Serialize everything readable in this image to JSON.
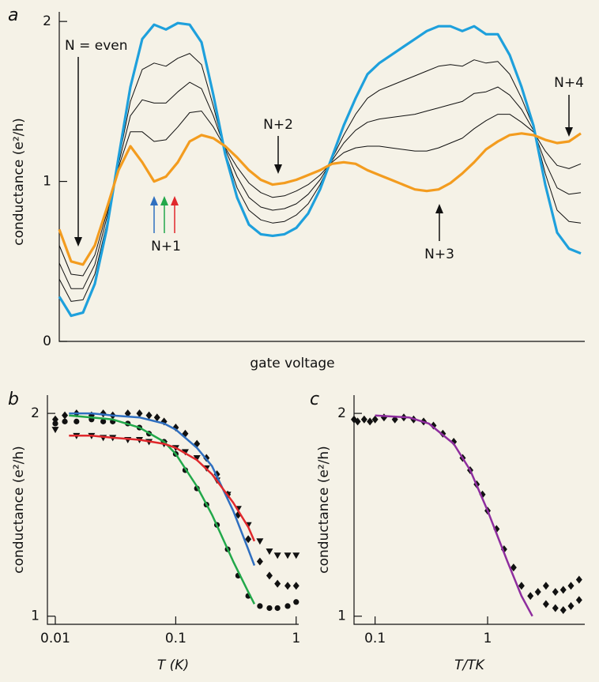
{
  "chart_data": [
    {
      "type": "line",
      "panel": "a",
      "ylabel": "conductance (e²/h)",
      "xlabel": "gate voltage",
      "ylim": [
        0,
        2.06
      ],
      "yticks": [
        0,
        1,
        2
      ],
      "annotations": [
        "N = even",
        "N+1",
        "N+2",
        "N+3",
        "N+4"
      ],
      "series": [
        {
          "color": "#111111",
          "values": [
            0.6,
            0.42,
            0.41,
            0.54,
            0.8,
            1.09,
            1.31,
            1.31,
            1.25,
            1.26,
            1.34,
            1.43,
            1.44,
            1.34,
            1.21,
            1.09,
            0.99,
            0.93,
            0.9,
            0.91,
            0.94,
            0.98,
            1.04,
            1.12,
            1.18,
            1.21,
            1.22,
            1.22,
            1.21,
            1.2,
            1.19,
            1.19,
            1.21,
            1.24,
            1.27,
            1.33,
            1.38,
            1.42,
            1.42,
            1.37,
            1.31,
            1.19,
            1.1,
            1.08,
            1.11
          ]
        },
        {
          "color": "#111111",
          "values": [
            0.49,
            0.33,
            0.33,
            0.48,
            0.77,
            1.11,
            1.41,
            1.51,
            1.49,
            1.49,
            1.56,
            1.62,
            1.58,
            1.41,
            1.2,
            1.03,
            0.9,
            0.84,
            0.82,
            0.83,
            0.86,
            0.92,
            1.01,
            1.13,
            1.24,
            1.32,
            1.37,
            1.39,
            1.4,
            1.41,
            1.42,
            1.44,
            1.46,
            1.48,
            1.5,
            1.55,
            1.56,
            1.59,
            1.54,
            1.45,
            1.32,
            1.12,
            0.96,
            0.92,
            0.93
          ]
        },
        {
          "color": "#111111",
          "values": [
            0.39,
            0.25,
            0.26,
            0.42,
            0.73,
            1.13,
            1.5,
            1.7,
            1.74,
            1.72,
            1.77,
            1.8,
            1.73,
            1.47,
            1.18,
            0.96,
            0.82,
            0.76,
            0.74,
            0.75,
            0.79,
            0.86,
            0.98,
            1.14,
            1.29,
            1.42,
            1.52,
            1.57,
            1.6,
            1.63,
            1.66,
            1.69,
            1.72,
            1.73,
            1.72,
            1.76,
            1.74,
            1.75,
            1.67,
            1.52,
            1.34,
            1.05,
            0.82,
            0.75,
            0.74
          ]
        },
        {
          "color": "#1ea0dc",
          "width": 3.2,
          "values": [
            0.28,
            0.16,
            0.18,
            0.36,
            0.7,
            1.15,
            1.59,
            1.89,
            1.98,
            1.95,
            1.99,
            1.98,
            1.87,
            1.54,
            1.17,
            0.9,
            0.73,
            0.67,
            0.66,
            0.67,
            0.71,
            0.8,
            0.95,
            1.15,
            1.35,
            1.52,
            1.67,
            1.74,
            1.79,
            1.84,
            1.89,
            1.94,
            1.97,
            1.97,
            1.94,
            1.97,
            1.92,
            1.92,
            1.79,
            1.59,
            1.35,
            0.98,
            0.68,
            0.58,
            0.55
          ]
        },
        {
          "color": "#f39c1f",
          "width": 3.2,
          "values": [
            0.7,
            0.5,
            0.48,
            0.6,
            0.83,
            1.07,
            1.22,
            1.12,
            1.0,
            1.03,
            1.12,
            1.25,
            1.29,
            1.27,
            1.22,
            1.15,
            1.07,
            1.01,
            0.98,
            0.99,
            1.01,
            1.04,
            1.07,
            1.11,
            1.12,
            1.11,
            1.07,
            1.04,
            1.01,
            0.98,
            0.95,
            0.94,
            0.95,
            0.99,
            1.05,
            1.12,
            1.2,
            1.25,
            1.29,
            1.3,
            1.29,
            1.26,
            1.24,
            1.25,
            1.3
          ]
        }
      ]
    },
    {
      "type": "scatter",
      "panel": "b",
      "ylabel": "conductance (e²/h)",
      "xlabel": "T (K)",
      "xlog": true,
      "xlim": [
        0.0086,
        1.05
      ],
      "xticks": [
        0.01,
        0.1,
        1
      ],
      "ylim": [
        0.96,
        2.09
      ],
      "yticks": [
        1,
        2
      ],
      "series": [
        {
          "marker": "diamond",
          "color": "#111111",
          "x": [
            0.01,
            0.012,
            0.015,
            0.02,
            0.025,
            0.03,
            0.04,
            0.05,
            0.06,
            0.07,
            0.08,
            0.1,
            0.12,
            0.15,
            0.18,
            0.22,
            0.27,
            0.33,
            0.4,
            0.5,
            0.6,
            0.7,
            0.85,
            1.0
          ],
          "values": [
            1.97,
            1.99,
            2.0,
            1.99,
            2.0,
            1.99,
            2.0,
            2.0,
            1.99,
            1.98,
            1.96,
            1.93,
            1.9,
            1.85,
            1.78,
            1.7,
            1.6,
            1.5,
            1.38,
            1.27,
            1.2,
            1.16,
            1.15,
            1.15
          ]
        },
        {
          "marker": "circle",
          "color": "#111111",
          "x": [
            0.01,
            0.012,
            0.015,
            0.02,
            0.025,
            0.03,
            0.04,
            0.05,
            0.06,
            0.08,
            0.1,
            0.12,
            0.15,
            0.18,
            0.22,
            0.27,
            0.33,
            0.4,
            0.5,
            0.6,
            0.7,
            0.85,
            1.0
          ],
          "values": [
            1.95,
            1.96,
            1.96,
            1.97,
            1.96,
            1.96,
            1.95,
            1.93,
            1.9,
            1.86,
            1.8,
            1.72,
            1.63,
            1.55,
            1.45,
            1.33,
            1.2,
            1.1,
            1.05,
            1.04,
            1.04,
            1.05,
            1.07
          ]
        },
        {
          "marker": "triangle",
          "color": "#111111",
          "x": [
            0.01,
            0.015,
            0.02,
            0.025,
            0.03,
            0.04,
            0.05,
            0.06,
            0.08,
            0.1,
            0.12,
            0.15,
            0.18,
            0.22,
            0.27,
            0.33,
            0.4,
            0.5,
            0.6,
            0.7,
            0.85,
            1.0
          ],
          "values": [
            1.92,
            1.89,
            1.89,
            1.88,
            1.88,
            1.87,
            1.87,
            1.86,
            1.85,
            1.83,
            1.81,
            1.78,
            1.73,
            1.67,
            1.6,
            1.53,
            1.45,
            1.37,
            1.32,
            1.3,
            1.3,
            1.3
          ]
        },
        {
          "color": "#2f6fc0",
          "width": 2.5,
          "x": [
            0.013,
            0.02,
            0.03,
            0.05,
            0.08,
            0.1,
            0.15,
            0.2,
            0.3,
            0.4,
            0.45
          ],
          "values": [
            2.0,
            2.0,
            1.99,
            1.98,
            1.95,
            1.92,
            1.83,
            1.74,
            1.52,
            1.33,
            1.25
          ]
        },
        {
          "color": "#22a84a",
          "width": 2.5,
          "x": [
            0.013,
            0.02,
            0.03,
            0.05,
            0.08,
            0.1,
            0.15,
            0.2,
            0.3,
            0.4,
            0.45
          ],
          "values": [
            1.99,
            1.98,
            1.97,
            1.93,
            1.86,
            1.8,
            1.64,
            1.5,
            1.27,
            1.12,
            1.06
          ]
        },
        {
          "color": "#e0282c",
          "width": 2.5,
          "x": [
            0.013,
            0.02,
            0.03,
            0.05,
            0.08,
            0.1,
            0.15,
            0.2,
            0.3,
            0.4,
            0.45
          ],
          "values": [
            1.89,
            1.89,
            1.88,
            1.87,
            1.85,
            1.83,
            1.77,
            1.7,
            1.56,
            1.44,
            1.37
          ]
        }
      ]
    },
    {
      "type": "scatter",
      "panel": "c",
      "ylabel": "conductance (e²/h)",
      "xlabel": "T/TK",
      "xlog": true,
      "xlim": [
        0.065,
        7.3
      ],
      "xticks": [
        0.1,
        1
      ],
      "ylim": [
        0.96,
        2.09
      ],
      "yticks": [
        1,
        2
      ],
      "series": [
        {
          "marker": "diamond",
          "color": "#111111",
          "x": [
            0.065,
            0.07,
            0.08,
            0.09,
            0.1,
            0.12,
            0.15,
            0.18,
            0.22,
            0.27,
            0.33,
            0.4,
            0.5,
            0.6,
            0.7,
            0.8,
            0.9,
            1.0,
            1.2,
            1.4,
            1.7,
            2.0,
            2.4,
            2.8,
            3.3,
            3.3,
            4,
            4,
            4.7,
            4.7,
            5.5,
            5.5,
            6.5,
            6.5
          ],
          "values": [
            1.97,
            1.96,
            1.97,
            1.96,
            1.97,
            1.98,
            1.97,
            1.98,
            1.97,
            1.96,
            1.94,
            1.9,
            1.86,
            1.78,
            1.72,
            1.65,
            1.6,
            1.52,
            1.43,
            1.33,
            1.24,
            1.15,
            1.1,
            1.12,
            1.06,
            1.15,
            1.04,
            1.12,
            1.03,
            1.13,
            1.05,
            1.15,
            1.08,
            1.18
          ]
        },
        {
          "color": "#8e2d9e",
          "width": 2.5,
          "x": [
            0.1,
            0.2,
            0.3,
            0.5,
            0.7,
            1,
            1.5,
            2,
            2.5
          ],
          "values": [
            1.99,
            1.98,
            1.95,
            1.85,
            1.72,
            1.52,
            1.27,
            1.1,
            1.0
          ]
        }
      ]
    }
  ]
}
